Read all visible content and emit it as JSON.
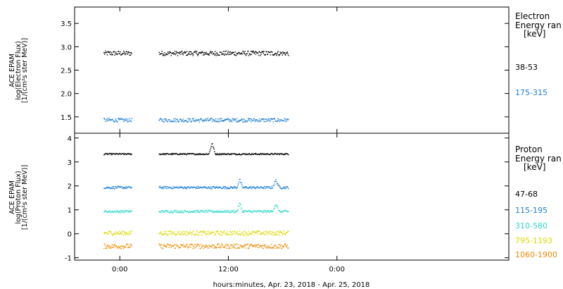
{
  "chart_data": [
    {
      "type": "scatter",
      "name_panel": "electron",
      "ylabel_lines": [
        "ACE EPAM",
        "log(Electron Flux)",
        "[1/(cm²s ster MeV)]"
      ],
      "ylim": [
        1.15,
        3.85
      ],
      "yticks": [
        1.5,
        2.0,
        2.5,
        3.0,
        3.5
      ],
      "ytick_labels": [
        "1.5",
        "2.0",
        "2.5",
        "3.0",
        "3.5"
      ],
      "legend_title": [
        "Electron",
        "Energy ran",
        "[keV]"
      ],
      "series": [
        {
          "name": "38-53",
          "color": "#000000",
          "mean": 2.87,
          "noise": 0.05
        },
        {
          "name": "175-315",
          "color": "#1f7fd4",
          "mean": 1.44,
          "noise": 0.04
        }
      ]
    },
    {
      "type": "scatter",
      "name_panel": "proton",
      "ylabel_lines": [
        "ACE EPAM",
        "log(Proton Flux)",
        "[1/(cm²s ster MeV)]"
      ],
      "ylim": [
        -1.1,
        4.2
      ],
      "yticks": [
        -1,
        0,
        1,
        2,
        3,
        4
      ],
      "ytick_labels": [
        "-1",
        "0",
        "1",
        "2",
        "3",
        "4"
      ],
      "legend_title": [
        "Proton",
        "Energy ran",
        "[keV]"
      ],
      "series": [
        {
          "name": "47-68",
          "color": "#000000",
          "mean": 3.35,
          "noise": 0.03
        },
        {
          "name": "115-195",
          "color": "#1f7fd4",
          "mean": 1.95,
          "noise": 0.05
        },
        {
          "name": "310-580",
          "color": "#2fd6c8",
          "mean": 0.95,
          "noise": 0.05
        },
        {
          "name": "795-1193",
          "color": "#d9d900",
          "mean": 0.05,
          "noise": 0.09
        },
        {
          "name": "1060-1900",
          "color": "#ee8a00",
          "mean": -0.5,
          "noise": 0.1
        }
      ]
    }
  ],
  "xaxis": {
    "range_hours": [
      -5,
      43
    ],
    "ticks_hours": [
      0,
      12,
      24
    ],
    "tick_labels": [
      "0:00",
      "12:00",
      "0:00"
    ],
    "xlabel": "hours:minutes, Apr. 23, 2018 - Apr. 25, 2018",
    "data_segments_hours": [
      [
        -1.8,
        1.3
      ],
      [
        4.3,
        18.6
      ]
    ]
  }
}
